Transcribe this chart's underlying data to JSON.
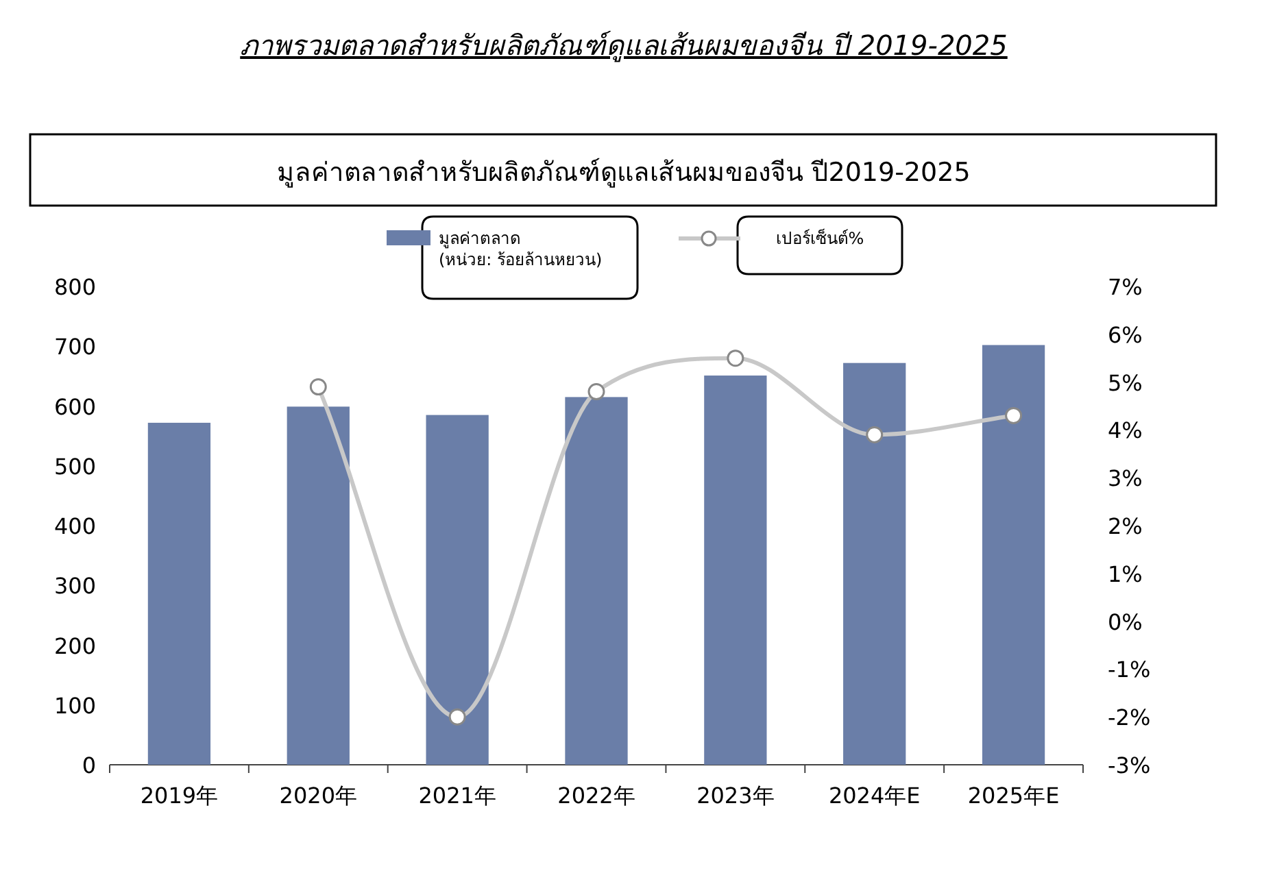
{
  "chart_data": {
    "type": "bar",
    "title": "ภาพรวมตลาดสำหรับผลิตภัณฑ์ดูแลเส้นผมของจีน ปี 2019-2025",
    "subtitle": "มูลค่าตลาดสำหรับผลิตภัณฑ์ดูแลเส้นผมของจีน ปี2019-2025",
    "categories": [
      "2019年",
      "2020年",
      "2021年",
      "2022年",
      "2023年",
      "2024年E",
      "2025年E"
    ],
    "series": [
      {
        "name": "มูลค่าตลาด\n(หน่วย: ร้อยล้านหยวน)",
        "color": "#6a7ea8",
        "values": [
          572,
          599,
          585,
          615,
          651,
          672,
          702
        ]
      },
      {
        "type": "line",
        "axis": "y2",
        "name": "เปอร์เซ็นต์%",
        "color": "#c8c8c8",
        "marker": "circle",
        "values": [
          null,
          4.9,
          -2.0,
          4.8,
          5.5,
          3.9,
          4.3
        ]
      }
    ],
    "ylim": [
      0,
      800
    ],
    "yticks": [
      0,
      100,
      200,
      300,
      400,
      500,
      600,
      700,
      800
    ],
    "y2lim": [
      -3,
      7
    ],
    "y2ticks": [
      {
        "value": -3,
        "label": "-3%"
      },
      {
        "value": -2,
        "label": "-2%"
      },
      {
        "value": -1,
        "label": "-1%"
      },
      {
        "value": 0,
        "label": "0%"
      },
      {
        "value": 1,
        "label": "1%"
      },
      {
        "value": 2,
        "label": "2%"
      },
      {
        "value": 3,
        "label": "3%"
      },
      {
        "value": 4,
        "label": "4%"
      },
      {
        "value": 5,
        "label": "5%"
      },
      {
        "value": 6,
        "label": "6%"
      },
      {
        "value": 7,
        "label": "7%"
      }
    ],
    "legend": "top"
  }
}
